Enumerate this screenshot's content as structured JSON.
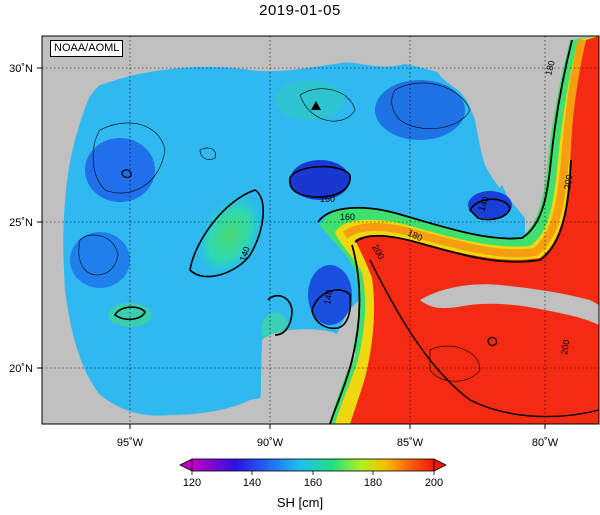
{
  "title": "2019-01-05",
  "credit": "NOAA/AOML",
  "axes": {
    "lon_ticks": [
      "95˚W",
      "90˚W",
      "85˚W",
      "80˚W"
    ],
    "lat_ticks": [
      "30˚N",
      "25˚N",
      "20˚N"
    ]
  },
  "colorbar": {
    "min": 120,
    "max": 200,
    "ticks": [
      "120",
      "140",
      "160",
      "180",
      "200"
    ],
    "label": "SH [cm]",
    "colors": [
      "#c000c0",
      "#2020e0",
      "#20c0f0",
      "#20e080",
      "#c0f020",
      "#f8b000",
      "#f82010"
    ]
  },
  "contour_labels": [
    "180",
    "200",
    "140",
    "160",
    "180",
    "200",
    "160",
    "140",
    "140",
    "200"
  ],
  "colors": {
    "land": "#c0c0c0",
    "gulf_blue": "#1a5fe0",
    "loop_current_red": "#f52a12"
  }
}
